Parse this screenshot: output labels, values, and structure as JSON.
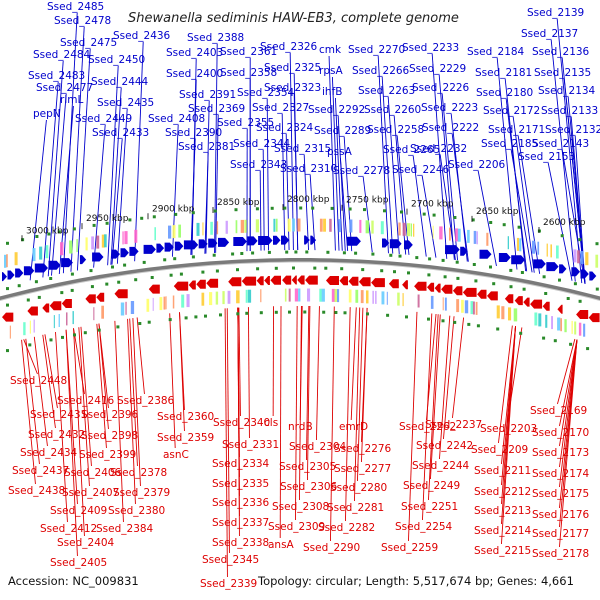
{
  "title": "Shewanella sediminis HAW-EB3, complete genome",
  "accession": "Accession: NC_009831",
  "summary": "Topology: circular; Length: 5,517,674 bp; Genes: 4,661",
  "colors": {
    "forward": "#0000cc",
    "reverse": "#dd0000",
    "backbone": "#7a7a7a",
    "tickmark": "#2a8a2a"
  },
  "ticks": [
    "3000 kbp",
    "2950 kbp",
    "2900 kbp",
    "2850 kbp",
    "2800 kbp",
    "2750 kbp",
    "2700 kbp",
    "2650 kbp",
    "2600 kbp"
  ],
  "top_labels": [
    "Ssed_2485",
    "Ssed_2478",
    "Ssed_2475",
    "Ssed_2484",
    "Ssed_2483",
    "Ssed_2477",
    "rlmL",
    "pepN",
    "Ssed_2436",
    "Ssed_2450",
    "Ssed_2444",
    "Ssed_2435",
    "Ssed_2449",
    "Ssed_2433",
    "Ssed_2403",
    "Ssed_2388",
    "Ssed_2400",
    "Ssed_2391",
    "Ssed_2408",
    "Ssed_2390",
    "Ssed_2381",
    "Ssed_2361",
    "Ssed_2358",
    "Ssed_2354",
    "Ssed_2369",
    "Ssed_2355",
    "Ssed_2344",
    "Ssed_2343",
    "Ssed_2326",
    "Ssed_2325",
    "Ssed_2323",
    "Ssed_2327",
    "Ssed_2324",
    "Ssed_2315",
    "Ssed_2310",
    "cmk",
    "rpsA",
    "ihfB",
    "Ssed_2292",
    "Ssed_2289",
    "pssA",
    "Ssed_2278",
    "Ssed_2270",
    "Ssed_2266",
    "Ssed_2263",
    "Ssed_2260",
    "Ssed_2258",
    "Ssed_2265",
    "Ssed_2233",
    "Ssed_2229",
    "Ssed_2226",
    "Ssed_2223",
    "Ssed_2222",
    "Ssed_2232",
    "Ssed_2246",
    "Ssed_2184",
    "Ssed_2181",
    "Ssed_2180",
    "Ssed_2172",
    "Ssed_2171",
    "Ssed_2185",
    "Ssed_2206",
    "Ssed_2139",
    "Ssed_2137",
    "Ssed_2136",
    "Ssed_2135",
    "Ssed_2134",
    "Ssed_2133",
    "Ssed_2132",
    "Ssed_2143",
    "Ssed_2153"
  ],
  "bottom_labels": [
    "Ssed_2448",
    "Ssed_2416",
    "Ssed_2431",
    "Ssed_2432",
    "Ssed_2434",
    "Ssed_2437",
    "Ssed_2438",
    "Ssed_2396",
    "Ssed_2398",
    "Ssed_2399",
    "Ssed_2406",
    "Ssed_2407",
    "Ssed_2409",
    "Ssed_2412",
    "Ssed_2404",
    "Ssed_2405",
    "Ssed_2386",
    "Ssed_2378",
    "Ssed_2379",
    "Ssed_2380",
    "Ssed_2384",
    "Ssed_2360",
    "Ssed_2359",
    "asnC",
    "Ssed_2340",
    "Ssed_2331",
    "Ssed_2334",
    "Ssed_2335",
    "Ssed_2336",
    "Ssed_2337",
    "Ssed_2338",
    "Ssed_2345",
    "Ssed_2339",
    "cls",
    "nrdB",
    "Ssed_2304",
    "Ssed_2305",
    "Ssed_2306",
    "Ssed_2308",
    "Ssed_2309",
    "ansA",
    "emrD",
    "Ssed_2276",
    "Ssed_2277",
    "Ssed_2280",
    "Ssed_2281",
    "Ssed_2282",
    "Ssed_2290",
    "Ssed_2262",
    "Ssed_2237",
    "Ssed_2242",
    "Ssed_2244",
    "Ssed_2249",
    "Ssed_2251",
    "Ssed_2254",
    "Ssed_2259",
    "Ssed_2203",
    "Ssed_2209",
    "Ssed_2211",
    "Ssed_2212",
    "Ssed_2213",
    "Ssed_2214",
    "Ssed_2215",
    "Ssed_2169",
    "Ssed_2170",
    "Ssed_2173",
    "Ssed_2174",
    "Ssed_2175",
    "Ssed_2176",
    "Ssed_2177",
    "Ssed_2178"
  ]
}
